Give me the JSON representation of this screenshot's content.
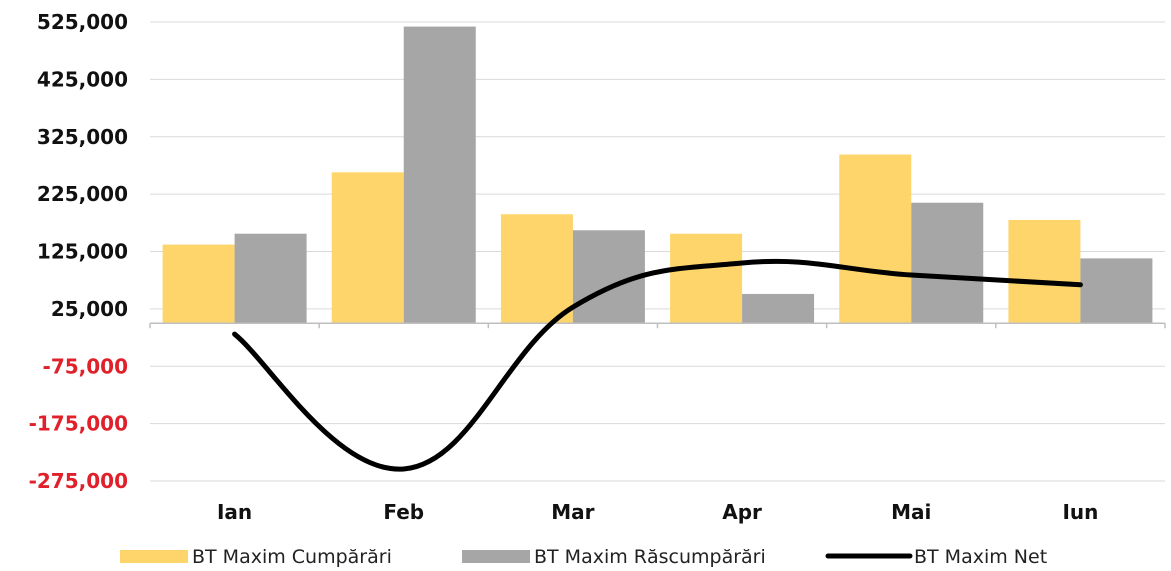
{
  "chart_data": {
    "type": "bar",
    "categories": [
      "Ian",
      "Feb",
      "Mar",
      "Apr",
      "Mai",
      "Iun"
    ],
    "series": [
      {
        "name": "BT Maxim Cumpărări",
        "kind": "bar",
        "color": "#FDD56B",
        "values": [
          137000,
          263000,
          190000,
          156000,
          294000,
          180000
        ]
      },
      {
        "name": "BT Maxim Răscumpărări",
        "kind": "bar",
        "color": "#A6A6A6",
        "values": [
          156000,
          517000,
          162000,
          51000,
          210000,
          113000
        ]
      },
      {
        "name": "BT Maxim Net",
        "kind": "line",
        "color": "#000000",
        "values": [
          -19000,
          -254000,
          28000,
          105000,
          84000,
          67000
        ]
      }
    ],
    "y_ticks": [
      "525,000",
      "425,000",
      "325,000",
      "225,000",
      "125,000",
      "25,000",
      "-75,000",
      "-175,000",
      "-275,000"
    ],
    "y_tick_values": [
      525000,
      425000,
      325000,
      225000,
      125000,
      25000,
      -75000,
      -175000,
      -275000
    ],
    "ylim": [
      -275000,
      525000
    ],
    "baseline": 0,
    "grid": true,
    "legend_position": "bottom",
    "positive_tick_color": "#111111",
    "negative_tick_color": "#E0202A",
    "grid_color": "#D9D9D9",
    "axis_color": "#BFBFBF"
  }
}
